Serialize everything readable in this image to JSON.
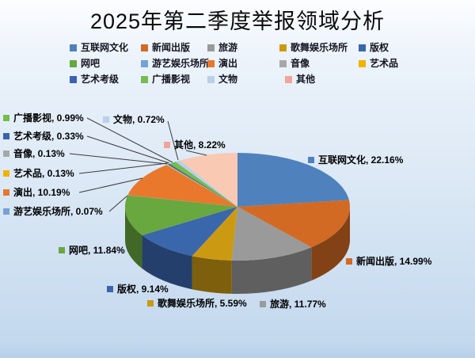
{
  "title": "2025年第二季度举报领域分析",
  "background": {
    "top": "#fcfdff",
    "mid": "#dbe8f5",
    "bottom": "#c3d8ee"
  },
  "chart_data": {
    "type": "pie",
    "style": "3d",
    "title": "2025年第二季度举报领域分析",
    "unit": "%",
    "legend_position": "top",
    "label_format": "category, value%",
    "start_angle_deg": 0,
    "direction": "clockwise",
    "categories": [
      "互联网文化",
      "新闻出版",
      "旅游",
      "歌舞娱乐场所",
      "版权",
      "网吧",
      "游艺娱乐场所",
      "演出",
      "音像",
      "艺术品",
      "艺术考级",
      "广播影视",
      "文物",
      "其他"
    ],
    "values": [
      22.16,
      14.99,
      11.77,
      5.59,
      9.14,
      11.84,
      0.07,
      10.19,
      0.13,
      0.13,
      0.33,
      0.99,
      0.72,
      8.22
    ],
    "colors": [
      "#4F81BD",
      "#D26A24",
      "#9A9A9A",
      "#CC9A12",
      "#3A66AC",
      "#69A73F",
      "#74A3D4",
      "#E9782C",
      "#A8A8A8",
      "#F0B400",
      "#3963B0",
      "#75BD4F",
      "#BACFE8",
      "#F9C9B4"
    ],
    "swatch_overrides": {
      "13": "#F0A49A"
    },
    "labels": [
      "互联网文化, 22.16%",
      "新闻出版, 14.99%",
      "旅游, 11.77%",
      "歌舞娱乐场所, 5.59%",
      "版权, 9.14%",
      "网吧, 11.84%",
      "游艺娱乐场所, 0.07%",
      "演出, 10.19%",
      "音像, 0.13%",
      "艺术品, 0.13%",
      "艺术考级, 0.33%",
      "广播影视, 0.99%",
      "文物, 0.72%",
      "其他, 8.22%"
    ]
  }
}
